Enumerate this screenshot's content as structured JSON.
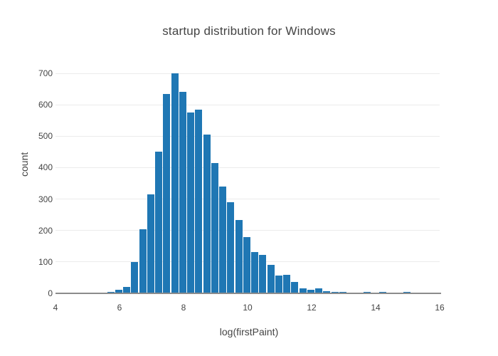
{
  "title": "startup distribution for Windows",
  "x_axis": {
    "label": "log(firstPaint)",
    "ticks": [
      "4",
      "6",
      "8",
      "10",
      "12",
      "14",
      "16"
    ],
    "tick_values": [
      4,
      6,
      8,
      10,
      12,
      14,
      16
    ],
    "range": [
      4,
      16
    ]
  },
  "y_axis": {
    "label": "count",
    "ticks": [
      "0",
      "100",
      "200",
      "300",
      "400",
      "500",
      "600",
      "700"
    ],
    "tick_values": [
      0,
      100,
      200,
      300,
      400,
      500,
      600,
      700
    ],
    "range": [
      0,
      740
    ]
  },
  "colors": {
    "bar": "#1f77b4",
    "grid": "#ebebeb",
    "axis_line": "#8c8c8c",
    "text": "#444444",
    "background": "#ffffff"
  },
  "chart_data": {
    "type": "bar",
    "subtype": "histogram",
    "title": "startup distribution for Windows",
    "xlabel": "log(firstPaint)",
    "ylabel": "count",
    "xlim": [
      4,
      16
    ],
    "ylim": [
      0,
      740
    ],
    "grid": true,
    "legend": false,
    "bin_start": 5.6,
    "bin_width": 0.25,
    "counts": [
      5,
      12,
      20,
      100,
      205,
      315,
      450,
      635,
      700,
      640,
      575,
      585,
      505,
      415,
      340,
      290,
      233,
      178,
      131,
      122,
      91,
      57,
      59,
      37,
      16,
      11,
      15,
      6,
      5,
      5,
      2,
      0,
      5,
      0,
      4,
      0,
      0,
      4,
      2
    ]
  }
}
